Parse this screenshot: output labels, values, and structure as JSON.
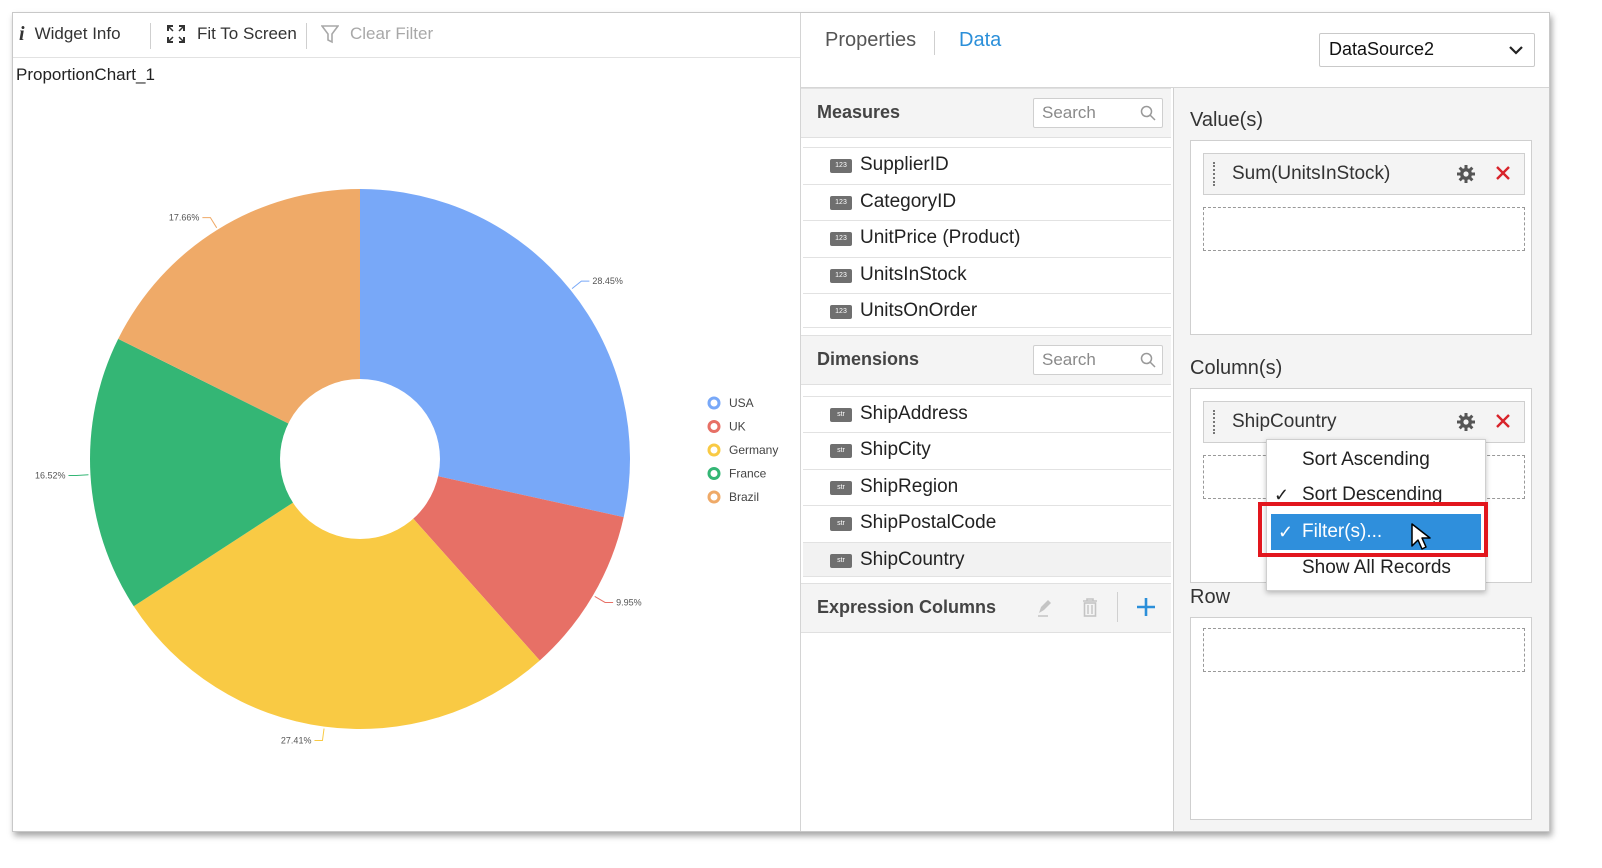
{
  "toolbar": {
    "widget_info": "Widget Info",
    "fit_to_screen": "Fit To Screen",
    "clear_filter": "Clear Filter"
  },
  "widget": {
    "title": "ProportionChart_1"
  },
  "chart_data": {
    "type": "pie",
    "subtype": "doughnut",
    "categories": [
      "USA",
      "UK",
      "Germany",
      "France",
      "Brazil"
    ],
    "values": [
      28.45,
      9.95,
      27.41,
      16.52,
      17.66
    ],
    "labels": [
      "28.45%",
      "9.95%",
      "27.41%",
      "16.52%",
      "17.66%"
    ],
    "colors": [
      "#78a8f8",
      "#e77066",
      "#f9ca44",
      "#34b675",
      "#efaa68"
    ],
    "legend": {
      "position": "right",
      "entries": [
        "USA",
        "UK",
        "Germany",
        "France",
        "Brazil"
      ]
    }
  },
  "panel": {
    "tabs": [
      {
        "label": "Properties",
        "active": false
      },
      {
        "label": "Data",
        "active": true
      }
    ],
    "datasource": "DataSource2",
    "measures": {
      "title": "Measures",
      "search_placeholder": "Search",
      "items": [
        {
          "badge": "123",
          "name": "SupplierID"
        },
        {
          "badge": "123",
          "name": "CategoryID"
        },
        {
          "badge": "123",
          "name": "UnitPrice (Product)"
        },
        {
          "badge": "123",
          "name": "UnitsInStock"
        },
        {
          "badge": "123",
          "name": "UnitsOnOrder"
        }
      ]
    },
    "dimensions": {
      "title": "Dimensions",
      "search_placeholder": "Search",
      "items": [
        {
          "badge": "str",
          "name": "ShipAddress"
        },
        {
          "badge": "str",
          "name": "ShipCity"
        },
        {
          "badge": "str",
          "name": "ShipRegion"
        },
        {
          "badge": "str",
          "name": "ShipPostalCode"
        },
        {
          "badge": "str",
          "name": "ShipCountry"
        }
      ]
    },
    "expression_columns": {
      "title": "Expression Columns"
    },
    "values_zone": {
      "title": "Value(s)",
      "pill": "Sum(UnitsInStock)"
    },
    "columns_zone": {
      "title": "Column(s)",
      "pill": "ShipCountry"
    },
    "row_zone": {
      "title": "Row"
    }
  },
  "context_menu": {
    "items": [
      {
        "label": "Sort Ascending",
        "checked": false
      },
      {
        "label": "Sort Descending",
        "checked": true
      },
      {
        "label": "Filter(s)...",
        "checked": true,
        "active": true
      },
      {
        "label": "Show All Records",
        "checked": false
      }
    ],
    "check_glyph": "✓"
  }
}
